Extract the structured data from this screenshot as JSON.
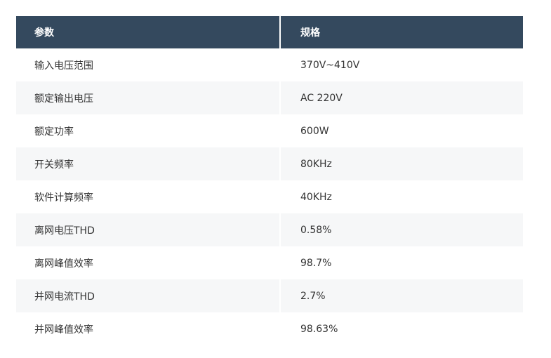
{
  "table": {
    "headers": [
      "参数",
      "规格"
    ],
    "rows": [
      [
        "输入电压范围",
        "370V~410V"
      ],
      [
        "额定输出电压",
        "AC 220V"
      ],
      [
        "额定功率",
        "600W"
      ],
      [
        "开关频率",
        "80KHz"
      ],
      [
        "软件计算频率",
        "40KHz"
      ],
      [
        "离网电压THD",
        "0.58%"
      ],
      [
        "离网峰值效率",
        "98.7%"
      ],
      [
        "并网电流THD",
        "2.7%"
      ],
      [
        "并网峰值效率",
        "98.63%"
      ]
    ]
  },
  "colors": {
    "header_bg": "#34495e",
    "header_text": "#ffffff",
    "stripe_bg": "#f6f7f8"
  }
}
